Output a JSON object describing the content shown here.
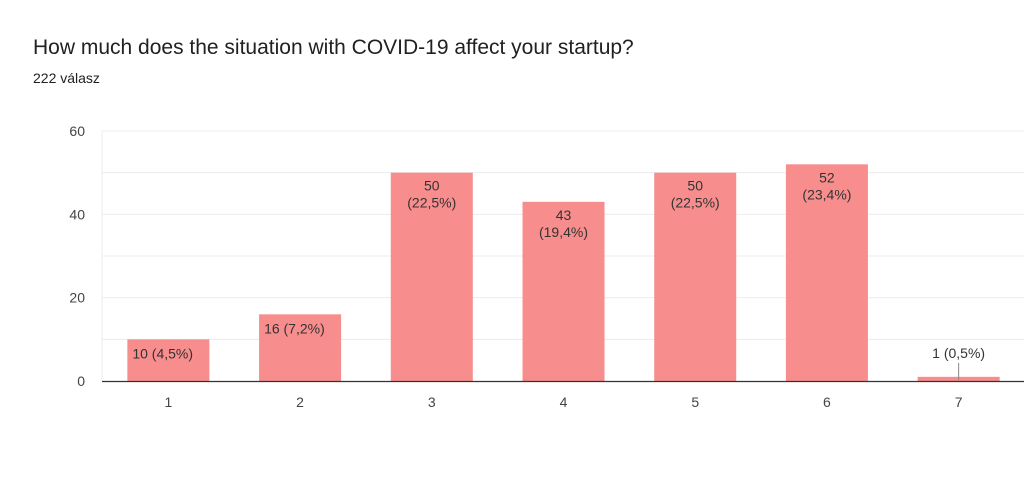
{
  "header": {
    "title": "How much does the situation with COVID-19 affect your startup?",
    "response_count": "222 válasz"
  },
  "chart_data": {
    "type": "bar",
    "title": "How much does the situation with COVID-19 affect your startup?",
    "subtitle": "222 válasz",
    "categories": [
      "1",
      "2",
      "3",
      "4",
      "5",
      "6",
      "7"
    ],
    "values": [
      10,
      16,
      50,
      43,
      50,
      52,
      1
    ],
    "data_labels": [
      "10 (4,5%)",
      "16 (7,2%)",
      "50 (22,5%)",
      "43 (19,4%)",
      "50 (22,5%)",
      "52 (23,4%)",
      "1 (0,5%)"
    ],
    "counts": [
      "10",
      "16",
      "50",
      "43",
      "50",
      "52",
      "1"
    ],
    "percents": [
      "(4,5%)",
      "(7,2%)",
      "(22,5%)",
      "(19,4%)",
      "(22,5%)",
      "(23,4%)",
      "(0,5%)"
    ],
    "y_ticks": [
      "0",
      "20",
      "40",
      "60"
    ],
    "xlabel": "",
    "ylabel": "",
    "ylim": [
      0,
      60
    ],
    "grid": true,
    "legend": "none",
    "bar_color": "#f88d8d"
  }
}
